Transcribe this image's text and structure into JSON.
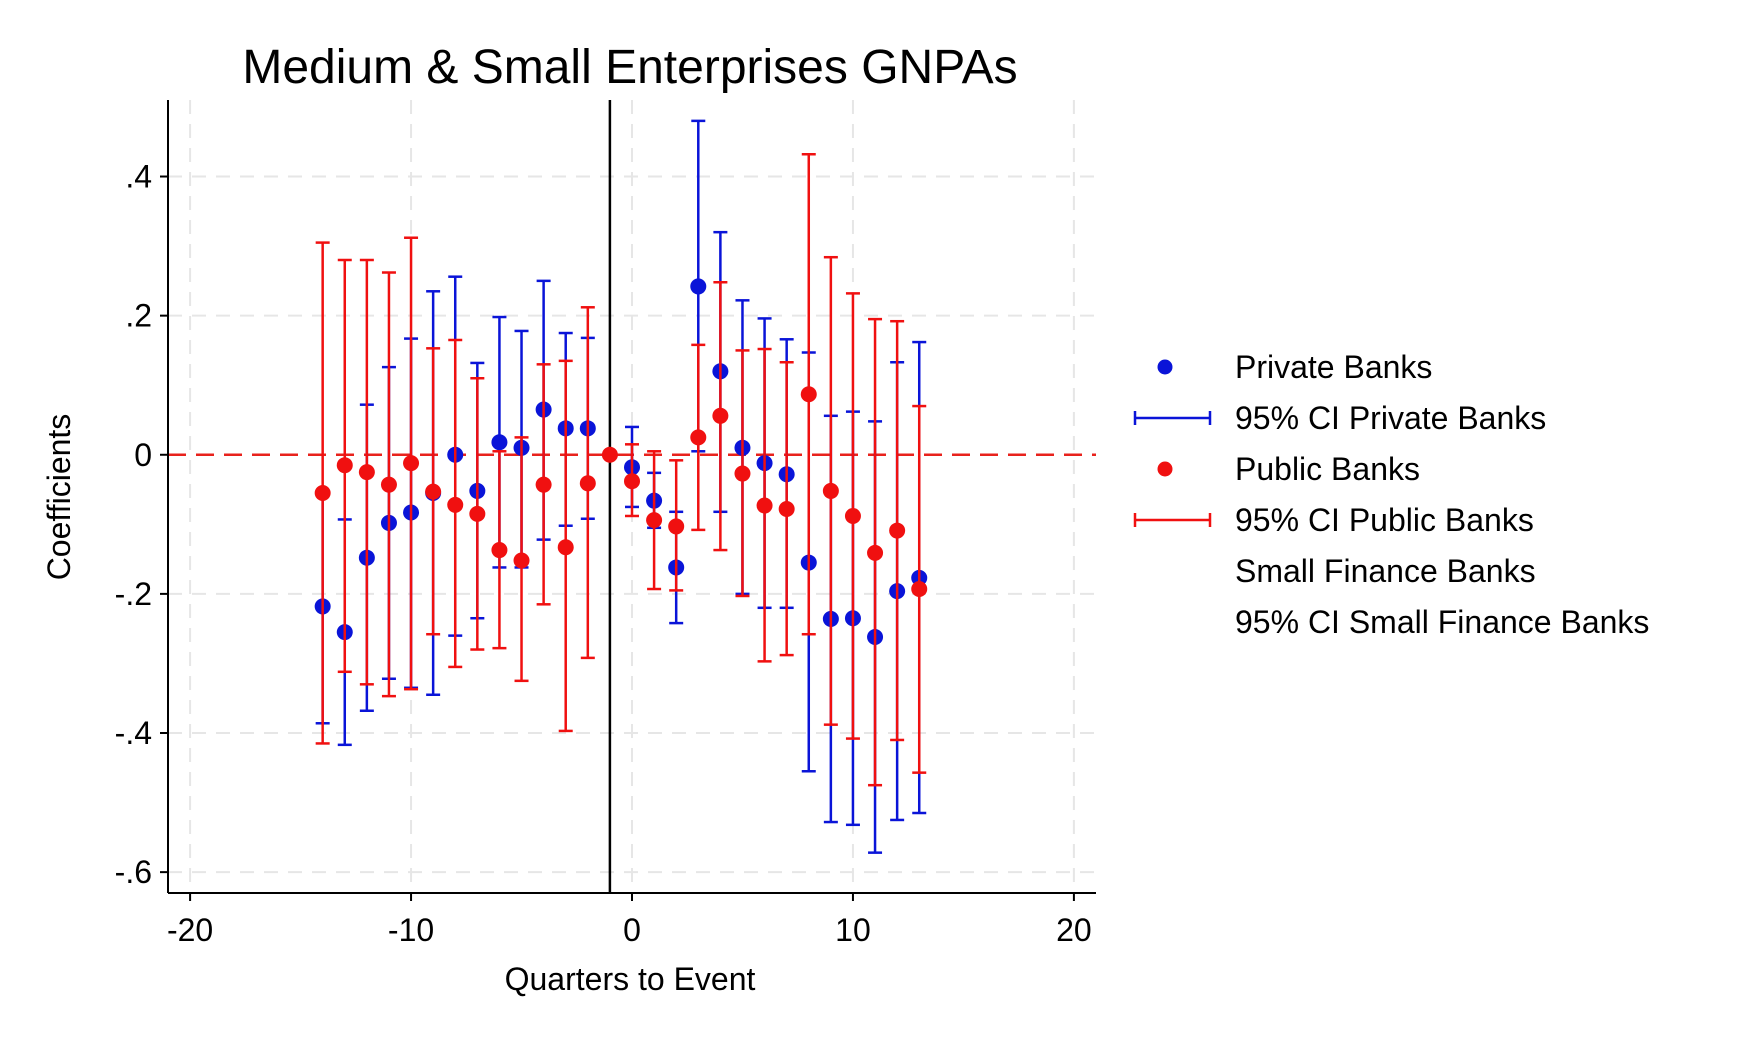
{
  "chart_data": {
    "type": "scatter",
    "title": "Medium & Small Enterprises GNPAs",
    "xlabel": "Quarters to Event",
    "ylabel": "Coefficients",
    "xlim": [
      -21,
      21
    ],
    "ylim": [
      -0.63,
      0.51
    ],
    "x_ticks": [
      -20,
      -10,
      0,
      10,
      20
    ],
    "x_tick_labels": [
      "-20",
      "-10",
      "0",
      "10",
      "20"
    ],
    "y_ticks": [
      -0.6,
      -0.4,
      -0.2,
      0,
      0.2,
      0.4
    ],
    "y_tick_labels": [
      "-.6",
      "-.4",
      "-.2",
      "0",
      ".2",
      ".4"
    ],
    "grid": true,
    "reference_lines": {
      "horizontal_zero": {
        "y": 0,
        "color": "#e8221c",
        "style": "dashed"
      },
      "vertical_event": {
        "x": -1,
        "color": "#000000"
      }
    },
    "legend_position": "right",
    "legend": [
      {
        "label": "Private Banks",
        "kind": "marker",
        "color": "#0a14d8"
      },
      {
        "label": "95% CI Private Banks",
        "kind": "errorbar",
        "color": "#0a14d8"
      },
      {
        "label": "Public Banks",
        "kind": "marker",
        "color": "#f01010"
      },
      {
        "label": "95% CI Public Banks",
        "kind": "errorbar",
        "color": "#f01010"
      },
      {
        "label": "Small Finance Banks",
        "kind": "none",
        "color": ""
      },
      {
        "label": "95% CI Small Finance Banks",
        "kind": "none",
        "color": ""
      }
    ],
    "series": [
      {
        "name": "Private Banks",
        "color": "#0a14d8",
        "x": [
          -14,
          -13,
          -12,
          -11,
          -10,
          -9,
          -8,
          -7,
          -6,
          -5,
          -4,
          -3,
          -2,
          0,
          1,
          2,
          3,
          4,
          5,
          6,
          7,
          8,
          9,
          10,
          11,
          12,
          13
        ],
        "y": [
          -0.218,
          -0.255,
          -0.148,
          -0.098,
          -0.083,
          -0.055,
          0.0,
          -0.052,
          0.018,
          0.01,
          0.065,
          0.038,
          0.038,
          -0.018,
          -0.066,
          -0.162,
          0.242,
          0.12,
          0.01,
          -0.012,
          -0.028,
          -0.155,
          -0.236,
          -0.235,
          -0.262,
          -0.196,
          -0.177
        ],
        "lower": [
          -0.386,
          -0.417,
          -0.368,
          -0.322,
          -0.335,
          -0.345,
          -0.26,
          -0.235,
          -0.162,
          -0.162,
          -0.122,
          -0.102,
          -0.092,
          -0.075,
          -0.105,
          -0.242,
          0.005,
          -0.082,
          -0.2,
          -0.22,
          -0.22,
          -0.455,
          -0.528,
          -0.532,
          -0.572,
          -0.525,
          -0.515
        ],
        "upper": [
          -0.052,
          -0.093,
          0.072,
          0.126,
          0.167,
          0.235,
          0.256,
          0.132,
          0.198,
          0.178,
          0.25,
          0.175,
          0.168,
          0.04,
          -0.026,
          -0.082,
          0.48,
          0.32,
          0.222,
          0.196,
          0.166,
          0.147,
          0.056,
          0.062,
          0.048,
          0.133,
          0.162
        ]
      },
      {
        "name": "Public Banks",
        "color": "#f01010",
        "x": [
          -14,
          -13,
          -12,
          -11,
          -10,
          -9,
          -8,
          -7,
          -6,
          -5,
          -4,
          -3,
          -2,
          -1,
          0,
          1,
          2,
          3,
          4,
          5,
          6,
          7,
          8,
          9,
          10,
          11,
          12,
          13
        ],
        "y": [
          -0.055,
          -0.015,
          -0.025,
          -0.043,
          -0.012,
          -0.053,
          -0.072,
          -0.085,
          -0.137,
          -0.152,
          -0.043,
          -0.133,
          -0.041,
          0.0,
          -0.038,
          -0.094,
          -0.103,
          0.025,
          0.056,
          -0.027,
          -0.073,
          -0.078,
          0.087,
          -0.052,
          -0.088,
          -0.141,
          -0.109,
          -0.193
        ],
        "lower": [
          -0.415,
          -0.312,
          -0.33,
          -0.347,
          -0.337,
          -0.258,
          -0.305,
          -0.28,
          -0.278,
          -0.325,
          -0.215,
          -0.397,
          -0.292,
          0.0,
          -0.088,
          -0.193,
          -0.195,
          -0.108,
          -0.137,
          -0.203,
          -0.297,
          -0.288,
          -0.258,
          -0.388,
          -0.408,
          -0.475,
          -0.41,
          -0.457
        ],
        "upper": [
          0.305,
          0.28,
          0.28,
          0.262,
          0.312,
          0.153,
          0.165,
          0.11,
          0.005,
          0.025,
          0.13,
          0.135,
          0.212,
          0.0,
          0.015,
          0.005,
          -0.008,
          0.158,
          0.248,
          0.15,
          0.152,
          0.133,
          0.432,
          0.284,
          0.232,
          0.195,
          0.192,
          0.07
        ]
      }
    ]
  }
}
